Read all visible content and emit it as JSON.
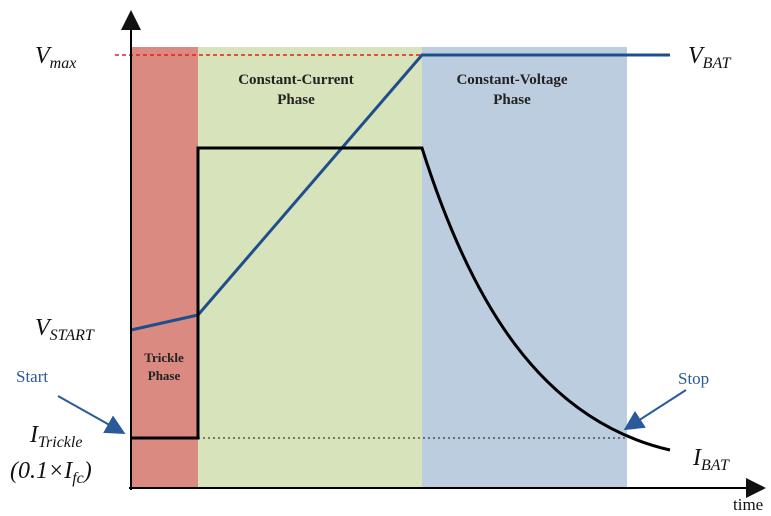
{
  "labels": {
    "vmax": {
      "base": "V",
      "sub": "max"
    },
    "vbat": {
      "base": "V",
      "sub": "BAT"
    },
    "vstart": {
      "base": "V",
      "sub": "START"
    },
    "itrickle": {
      "base": "I",
      "sub": "Trickle"
    },
    "ifc": {
      "prefix": "(0.1×",
      "base": "I",
      "sub": "fc",
      "suffix": ")"
    },
    "ibat": {
      "base": "I",
      "sub": "BAT"
    }
  },
  "phases": {
    "constant_current": [
      "Constant-Current",
      "Phase"
    ],
    "constant_voltage": [
      "Constant-Voltage",
      "Phase"
    ],
    "trickle": [
      "Trickle",
      "Phase"
    ]
  },
  "annotations": {
    "start": "Start",
    "stop": "Stop"
  },
  "x_axis_label": "time"
}
